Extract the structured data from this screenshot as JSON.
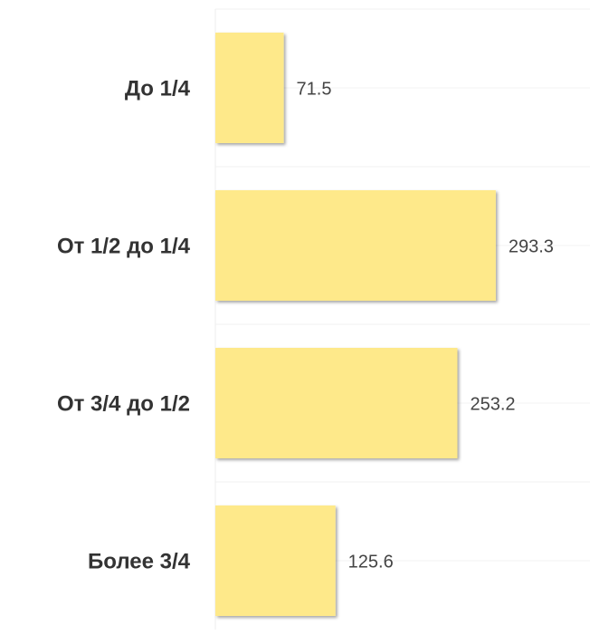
{
  "chart_data": {
    "type": "bar",
    "orientation": "horizontal",
    "categories": [
      "До 1/4",
      "От 1/2 до 1/4",
      "От 3/4 до 1/2",
      "Более 3/4"
    ],
    "values": [
      71.5,
      293.3,
      253.2,
      125.6
    ],
    "color": "#fee98a",
    "xlim": [
      0,
      390
    ]
  }
}
